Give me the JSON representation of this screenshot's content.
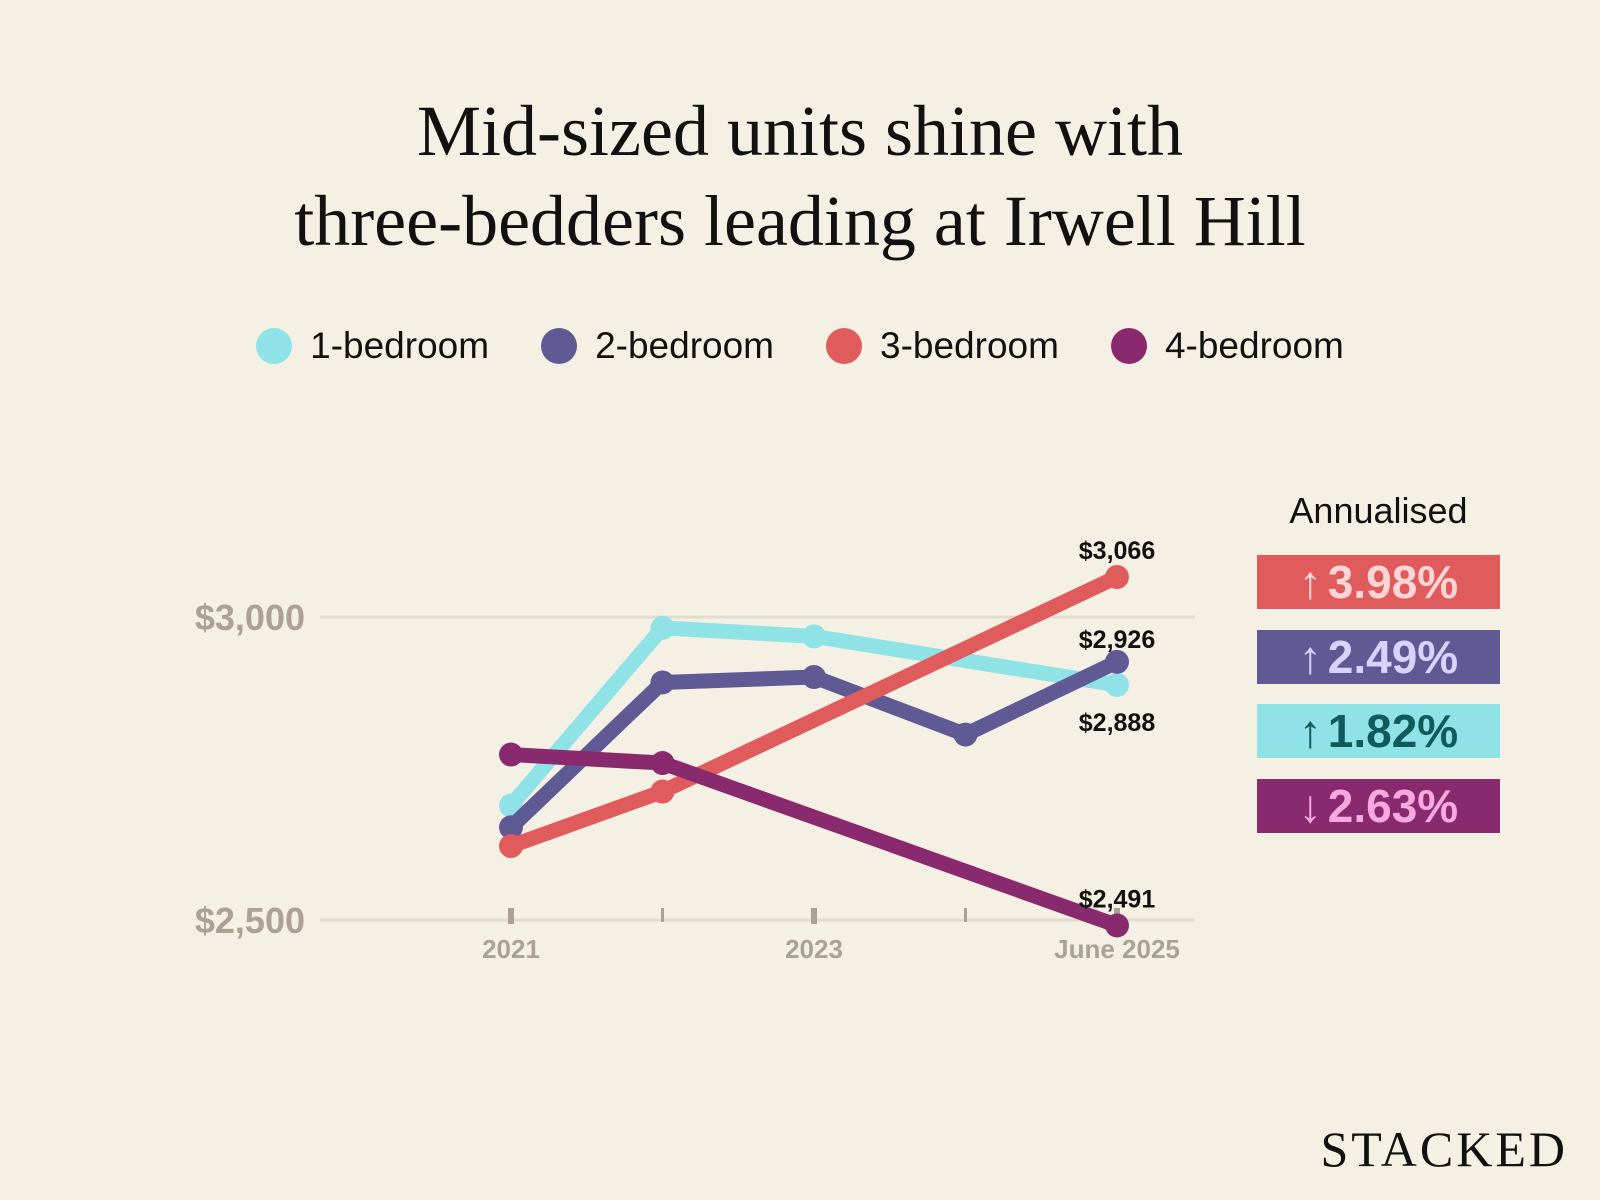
{
  "title_lines": [
    "Mid-sized units shine with",
    "three-bedders leading at Irwell Hill"
  ],
  "brand": "STACKED",
  "annualised_label": "Annualised",
  "badges": [
    {
      "series": "3-bedroom",
      "arrow": "↑",
      "text": "3.98%",
      "bg": "#e05c5c",
      "fg": "#fcd6d6"
    },
    {
      "series": "2-bedroom",
      "arrow": "↑",
      "text": "2.49%",
      "bg": "#5f5a94",
      "fg": "#d9d3ff"
    },
    {
      "series": "1-bedroom",
      "arrow": "↑",
      "text": "1.82%",
      "bg": "#8fe3e6",
      "fg": "#0f5b5b"
    },
    {
      "series": "4-bedroom",
      "arrow": "↓",
      "text": "2.63%",
      "bg": "#8a2a6e",
      "fg": "#f8a9df"
    }
  ],
  "chart_data": {
    "type": "line",
    "title": "Mid-sized units shine with three-bedders leading at Irwell Hill",
    "x": [
      2021,
      2022,
      2023,
      2024,
      2025
    ],
    "x_tick_labels": [
      "2021",
      "",
      "2023",
      "",
      "June 2025"
    ],
    "y_ticks": [
      {
        "value": 3000,
        "label": "$3,000"
      },
      {
        "value": 2500,
        "label": "$2,500"
      }
    ],
    "ylim": [
      2300,
      3150
    ],
    "grid": true,
    "legend_position": "top",
    "series": [
      {
        "name": "1-bedroom",
        "color": "#8fe3e6",
        "values": [
          2689,
          2982,
          2968,
          null,
          2888
        ],
        "end_label": "$2,888"
      },
      {
        "name": "2-bedroom",
        "color": "#5f5a94",
        "values": [
          2653,
          2892,
          2901,
          2806,
          2926
        ],
        "end_label": "$2,926"
      },
      {
        "name": "3-bedroom",
        "color": "#e05c5c",
        "values": [
          2622,
          2712,
          null,
          null,
          3066
        ],
        "end_label": "$3,066"
      },
      {
        "name": "4-bedroom",
        "color": "#8a2a6e",
        "values": [
          2773,
          2759,
          null,
          null,
          2491
        ],
        "end_label": "$2,491"
      }
    ]
  }
}
